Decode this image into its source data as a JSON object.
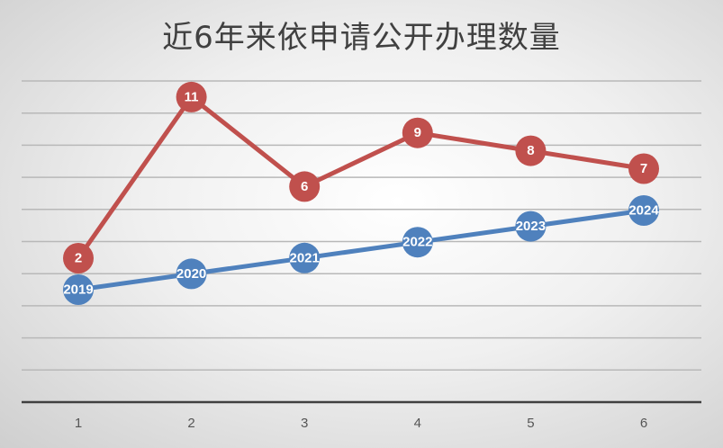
{
  "chart_data": {
    "type": "line",
    "title": "近6年来依申请公开办理数量",
    "categories": [
      "1",
      "2",
      "3",
      "4",
      "5",
      "6"
    ],
    "series": [
      {
        "values": [
          2019,
          2020,
          2021,
          2022,
          2023,
          2024
        ],
        "color": "#4f81bd",
        "data_labels": [
          "2019",
          "2020",
          "2021",
          "2022",
          "2023",
          "2024"
        ]
      },
      {
        "values": [
          2,
          11,
          6,
          9,
          8,
          7
        ],
        "color": "#c0504d",
        "data_labels": [
          "2",
          "11",
          "6",
          "9",
          "8",
          "7"
        ]
      }
    ],
    "xlabel": "",
    "ylabel": "",
    "grid": true,
    "y_axis_labels_visible": false,
    "legend": "none"
  }
}
